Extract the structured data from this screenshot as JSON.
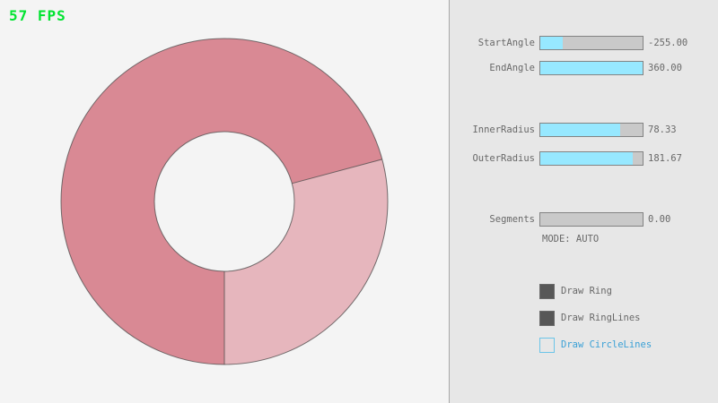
{
  "fps_label": "57 FPS",
  "colors": {
    "fps-green": "#00e430",
    "canvas-bg": "#f4f4f4",
    "panel-bg": "#e7e7e7",
    "divider": "#a8a8a8",
    "slider-track": "#c9c9c9",
    "slider-border": "#838383",
    "slider-fill": "#97e8ff",
    "label-text": "#686868",
    "checkbox-checked": "#575757",
    "cb-blue-border": "#6cc5e8",
    "link-blue": "#3aa0d6"
  },
  "ring": {
    "base_color": "#e6b6bd",
    "overlap_color": "#d98994",
    "line_color": "#4a4a4a"
  },
  "panel": {
    "sliders": [
      {
        "label": "StartAngle",
        "value": "-255.00",
        "fill_pct": 22
      },
      {
        "label": "EndAngle",
        "value": "360.00",
        "fill_pct": 100
      },
      {
        "label": "InnerRadius",
        "value": "78.33",
        "fill_pct": 78
      },
      {
        "label": "OuterRadius",
        "value": "181.67",
        "fill_pct": 90
      },
      {
        "label": "Segments",
        "value": "0.00",
        "fill_pct": 0
      }
    ],
    "mode_label": "MODE: AUTO",
    "checkboxes": [
      {
        "label": "Draw Ring",
        "checked": true
      },
      {
        "label": "Draw RingLines",
        "checked": true
      },
      {
        "label": "Draw CircleLines",
        "checked": false
      }
    ]
  }
}
